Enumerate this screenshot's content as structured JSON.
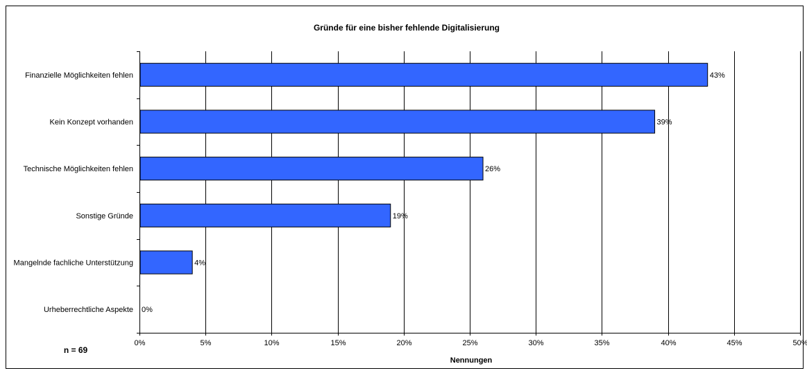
{
  "chart_data": {
    "type": "bar",
    "orientation": "horizontal",
    "title": "Gründe für eine bisher fehlende  Digitalisierung",
    "xlabel": "Nennungen",
    "ylabel": "",
    "categories": [
      "Finanzielle Möglichkeiten fehlen",
      "Kein Konzept vorhanden",
      "Technische Möglichkeiten fehlen",
      "Sonstige Gründe",
      "Mangelnde fachliche Unterstützung",
      "Urheberrechtliche Aspekte"
    ],
    "values": [
      43,
      39,
      26,
      19,
      4,
      0
    ],
    "value_labels": [
      "43%",
      "39%",
      "26%",
      "19%",
      "4%",
      "0%"
    ],
    "xlim": [
      0,
      50
    ],
    "x_ticks": [
      0,
      5,
      10,
      15,
      20,
      25,
      30,
      35,
      40,
      45,
      50
    ],
    "x_tick_labels": [
      "0%",
      "5%",
      "10%",
      "15%",
      "20%",
      "25%",
      "30%",
      "35%",
      "40%",
      "45%",
      "50%"
    ],
    "grid": "vertical",
    "legend": "none",
    "bar_color": "#3366FF",
    "annotation": "n = 69"
  }
}
